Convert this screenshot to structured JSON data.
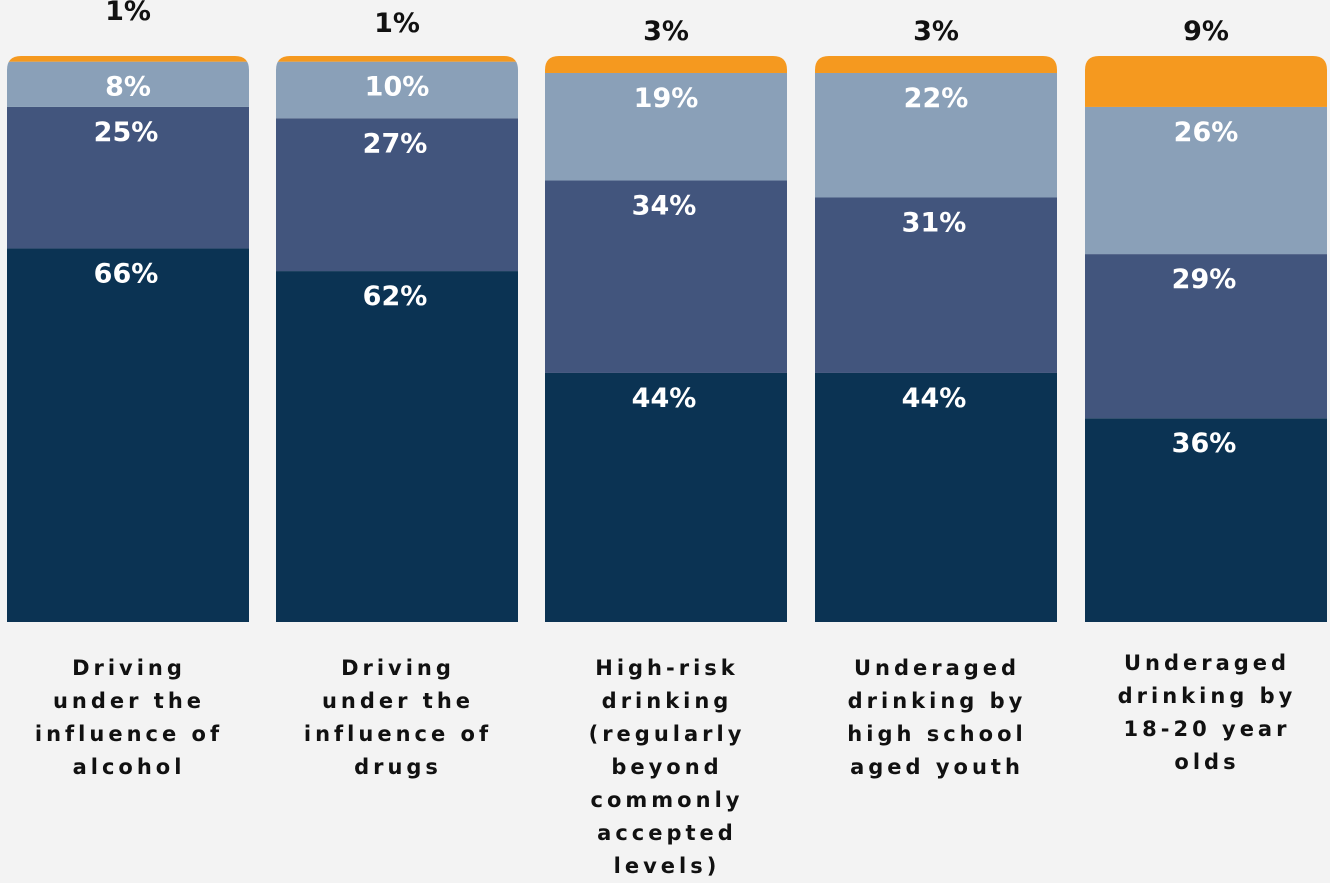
{
  "chart_data": {
    "type": "bar",
    "stacked": true,
    "categories": [
      [
        "Driving",
        "under the",
        "influence of",
        "alcohol"
      ],
      [
        "Driving",
        "under the",
        "influence of",
        "drugs"
      ],
      [
        "High-risk",
        "drinking",
        "(regularly",
        "beyond",
        "commonly",
        "accepted levels)"
      ],
      [
        "Underaged",
        "drinking by",
        "high school",
        "aged youth"
      ],
      [
        "Underaged",
        "drinking by",
        "18-20 year",
        "olds"
      ]
    ],
    "series": [
      {
        "color": "#0b3353",
        "values": [
          66,
          62,
          44,
          44,
          36
        ],
        "labels": [
          "66%",
          "62%",
          "44%",
          "44%",
          "36%"
        ]
      },
      {
        "color": "#42557d",
        "values": [
          25,
          27,
          34,
          31,
          29
        ],
        "labels": [
          "25%",
          "27%",
          "34%",
          "31%",
          "29%"
        ]
      },
      {
        "color": "#8aa0b8",
        "values": [
          8,
          10,
          19,
          22,
          26
        ],
        "labels": [
          "8%",
          "10%",
          "19%",
          "22%",
          "26%"
        ]
      },
      {
        "color": "#f5991f",
        "values": [
          1,
          1,
          3,
          3,
          9
        ],
        "labels": [
          "1%",
          "1%",
          "3%",
          "3%",
          "9%"
        ]
      }
    ],
    "ylim": [
      0,
      100
    ],
    "legend": "none",
    "grid": false
  }
}
